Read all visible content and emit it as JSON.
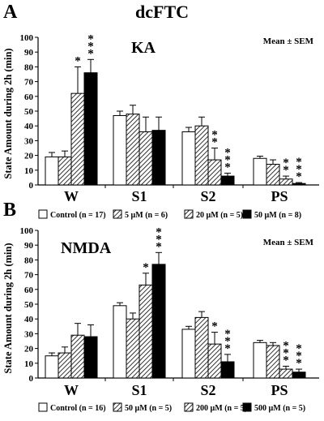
{
  "colors": {
    "ink": "#000000",
    "background": "#ffffff",
    "hatch": "#000000"
  },
  "shared": {
    "ylabel": "State Amount during 2h  (min)",
    "yticks": [
      0,
      10,
      20,
      30,
      40,
      50,
      60,
      70,
      80,
      90,
      100
    ]
  },
  "chart_data": [
    {
      "type": "bar",
      "panel_letter": "A",
      "title": "dcFTC",
      "subtitle": "KA",
      "annotation": "Mean ± SEM",
      "categories": [
        "W",
        "S1",
        "S2",
        "PS"
      ],
      "ylim": [
        0,
        100
      ],
      "grid": false,
      "legend_placement": "bottom",
      "series": [
        {
          "name": "Control  (n = 17)",
          "fill": "white",
          "values": [
            19,
            47,
            36,
            18
          ],
          "errors": [
            3,
            3,
            3,
            1.5
          ],
          "sig": [
            "",
            "",
            "",
            ""
          ]
        },
        {
          "name": "5 µM  (n = 6)",
          "fill": "hatch",
          "values": [
            19,
            48,
            40,
            14
          ],
          "errors": [
            4,
            6,
            6,
            3
          ],
          "sig": [
            "",
            "",
            "",
            ""
          ]
        },
        {
          "name": "20  µM  (n = 5)",
          "fill": "hatch",
          "values": [
            62,
            36,
            17,
            4
          ],
          "errors": [
            18,
            10,
            8,
            2
          ],
          "sig": [
            "*",
            "",
            "**",
            "**"
          ]
        },
        {
          "name": "50 µM  (n = 8)",
          "fill": "black",
          "values": [
            76,
            37,
            6,
            1
          ],
          "errors": [
            9,
            9,
            2,
            0.6
          ],
          "sig": [
            "***",
            "",
            "***",
            "***"
          ]
        }
      ]
    },
    {
      "type": "bar",
      "panel_letter": "B",
      "title": "",
      "subtitle": "NMDA",
      "annotation": "Mean ± SEM",
      "categories": [
        "W",
        "S1",
        "S2",
        "PS"
      ],
      "ylim": [
        0,
        100
      ],
      "grid": false,
      "legend_placement": "bottom",
      "series": [
        {
          "name": "Control  (n = 16)",
          "fill": "white",
          "values": [
            15,
            49,
            33,
            24
          ],
          "errors": [
            2,
            2,
            2,
            1.5
          ],
          "sig": [
            "",
            "",
            "",
            ""
          ]
        },
        {
          "name": "50 µM  (n = 5)",
          "fill": "hatch",
          "values": [
            17,
            40,
            41,
            22
          ],
          "errors": [
            4,
            4,
            4,
            2
          ],
          "sig": [
            "",
            "",
            "",
            ""
          ]
        },
        {
          "name": "200 µM  (n = 5)",
          "fill": "hatch",
          "values": [
            29,
            63,
            23,
            6
          ],
          "errors": [
            8,
            8,
            8,
            2
          ],
          "sig": [
            "",
            "*",
            "*",
            "***"
          ]
        },
        {
          "name": "500 µM  (n = 5)",
          "fill": "black",
          "values": [
            28,
            77,
            11,
            4
          ],
          "errors": [
            8,
            8,
            5,
            2
          ],
          "sig": [
            "",
            "***",
            "***",
            "***"
          ]
        }
      ]
    }
  ]
}
